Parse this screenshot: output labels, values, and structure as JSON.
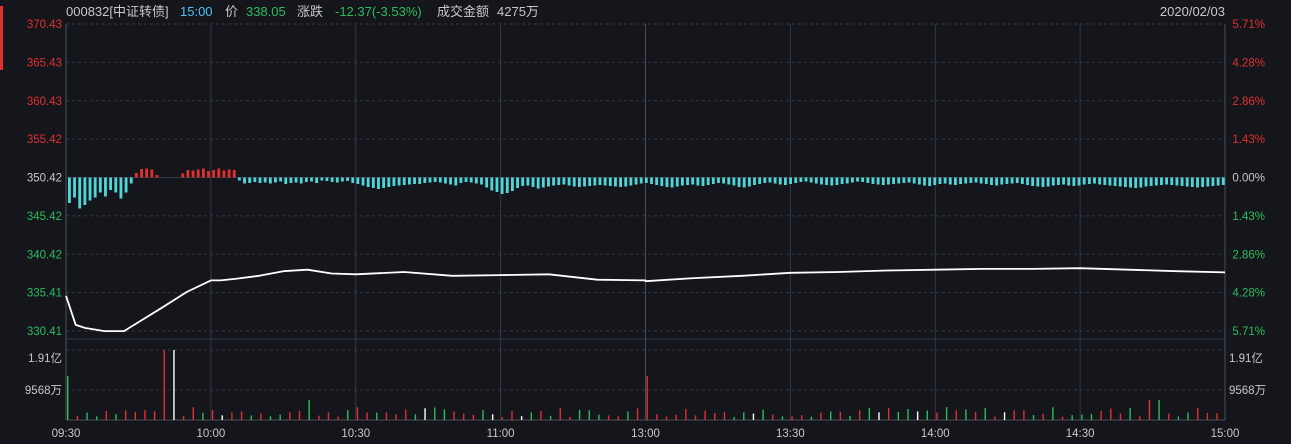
{
  "header": {
    "code": "000832[中证转债]",
    "time": "15:00",
    "price_label": "价",
    "price": "338.05",
    "change_label": "涨跌",
    "change": "-12.37(-3.53%)",
    "amount_label": "成交金额",
    "amount": "4275万",
    "date": "2020/02/03"
  },
  "colors": {
    "background": "#14161b",
    "grid": "#343843",
    "up": "#e03030",
    "down": "#2bbd5b",
    "avg_bar": "#4fd6d9",
    "price_line": "#ffffff",
    "time_text": "#4fc3f7"
  },
  "chart_data": {
    "type": "line",
    "title": "",
    "x_ticks": [
      "09:30",
      "10:00",
      "10:30",
      "11:00",
      "13:00",
      "13:30",
      "14:00",
      "14:30",
      "15:00"
    ],
    "price_ticks": [
      "370.43",
      "365.43",
      "360.43",
      "355.42",
      "350.42",
      "345.42",
      "340.42",
      "335.41",
      "330.41"
    ],
    "pct_ticks": [
      "5.71%",
      "4.28%",
      "2.86%",
      "1.43%",
      "0.00%",
      "1.43%",
      "2.86%",
      "4.28%",
      "5.71%"
    ],
    "volume_ticks": [
      "1.91亿",
      "9568万"
    ],
    "ylim": [
      330.41,
      370.43
    ],
    "prev_close": 350.42,
    "price_series": {
      "x": [
        "09:30",
        "09:32",
        "09:34",
        "09:38",
        "09:42",
        "09:50",
        "09:55",
        "10:00",
        "10:02",
        "10:05",
        "10:10",
        "10:15",
        "10:20",
        "10:25",
        "10:30",
        "10:40",
        "10:50",
        "11:00",
        "11:10",
        "11:20",
        "11:30",
        "13:00",
        "13:10",
        "13:20",
        "13:30",
        "13:40",
        "13:50",
        "14:00",
        "14:10",
        "14:20",
        "14:30",
        "14:40",
        "14:50",
        "15:00"
      ],
      "y": [
        335.0,
        331.2,
        330.8,
        330.4,
        330.4,
        333.5,
        335.5,
        337.0,
        337.0,
        337.2,
        337.6,
        338.2,
        338.4,
        337.9,
        337.8,
        338.1,
        337.6,
        337.7,
        337.8,
        337.1,
        337.0,
        336.9,
        337.3,
        337.6,
        338.0,
        338.1,
        338.3,
        338.4,
        338.5,
        338.5,
        338.6,
        338.4,
        338.2,
        338.05
      ]
    },
    "delta_bars": [
      -5.1,
      -4.0,
      -6.2,
      -5.5,
      -4.6,
      -4.0,
      -3.0,
      -3.8,
      -2.5,
      -3.0,
      -4.2,
      -3.0,
      -1.2,
      0.9,
      1.7,
      1.8,
      1.6,
      0.5,
      0,
      0,
      0,
      0,
      0.8,
      1.5,
      1.4,
      1.6,
      1.8,
      1.3,
      1.5,
      1.8,
      1.4,
      1.6,
      1.5,
      -0.6,
      -1.2,
      -1.1,
      -0.9,
      -1.1,
      -1.0,
      -1.2,
      -1.0,
      -0.8,
      -1.3,
      -1.1,
      -1.0,
      -1.2,
      -0.9,
      -0.8,
      -1.1,
      -0.6,
      -0.7,
      -0.9,
      -1.0,
      -0.8,
      -0.7,
      -1.1,
      -1.3,
      -1.6,
      -1.9,
      -2.1,
      -2.3,
      -2.1,
      -1.9,
      -1.7,
      -1.6,
      -1.5,
      -1.4,
      -1.3,
      -1.3,
      -1.1,
      -1.0,
      -0.9,
      -1.0,
      -1.2,
      -1.4,
      -1.6,
      -1.1,
      -0.9,
      -1.0,
      -1.2,
      -1.4,
      -2.0,
      -2.6,
      -2.9,
      -3.3,
      -3.1,
      -2.7,
      -2.1,
      -1.7,
      -1.6,
      -1.9,
      -2.2,
      -2.0,
      -1.8,
      -1.6,
      -1.5,
      -1.4,
      -1.6,
      -1.8,
      -1.9,
      -1.8,
      -1.7,
      -1.6,
      -1.5,
      -1.6,
      -1.7,
      -1.8,
      -1.9,
      -1.8,
      -1.6,
      -1.4,
      -1.2,
      -1.1,
      -1.3,
      -1.5,
      -1.7,
      -1.9,
      -2.0,
      -1.8,
      -1.6,
      -1.5,
      -1.4,
      -1.6,
      -1.7,
      -1.5,
      -1.3,
      -1.1,
      -1.2,
      -1.4,
      -1.6,
      -1.9,
      -2.0,
      -1.8,
      -1.5,
      -1.3,
      -1.1,
      -1.0,
      -1.2,
      -1.4,
      -1.5,
      -1.3,
      -1.1,
      -0.9,
      -0.8,
      -1.0,
      -1.2,
      -1.4,
      -1.5,
      -1.6,
      -1.5,
      -1.3,
      -1.2,
      -1.0,
      -0.8,
      -0.9,
      -1.1,
      -1.3,
      -1.4,
      -1.5,
      -1.4,
      -1.3,
      -1.2,
      -1.1,
      -1.0,
      -1.2,
      -1.4,
      -1.6,
      -1.7,
      -1.5,
      -1.3,
      -1.2,
      -1.4,
      -1.5,
      -1.3,
      -1.2,
      -1.1,
      -1.0,
      -1.2,
      -1.3,
      -1.5,
      -1.6,
      -1.4,
      -1.3,
      -1.2,
      -1.1,
      -1.3,
      -1.5,
      -1.7,
      -1.8,
      -1.9,
      -1.8,
      -1.6,
      -1.5,
      -1.4,
      -1.6,
      -1.7,
      -1.6,
      -1.4,
      -1.3,
      -1.2,
      -1.4,
      -1.5,
      -1.6,
      -1.7,
      -1.8,
      -1.9,
      -2.0,
      -2.1,
      -2.0,
      -1.8,
      -1.7,
      -1.6,
      -1.5,
      -1.4,
      -1.5,
      -1.6,
      -1.7,
      -1.8,
      -1.9,
      -2.0,
      -1.9,
      -1.8,
      -1.7,
      -1.6,
      -1.5
    ],
    "volume_bars_note": "1.91亿 peak at 10:00 area",
    "volume_max": 1.91,
    "volume_spikes": [
      {
        "x": "09:30",
        "v": 1.2
      },
      {
        "x": "09:51",
        "v": 1.91
      },
      {
        "x": "13:00",
        "v": 1.2
      },
      {
        "x": "14:45",
        "v": 0.55
      },
      {
        "x": "10:20",
        "v": 0.55
      }
    ]
  }
}
